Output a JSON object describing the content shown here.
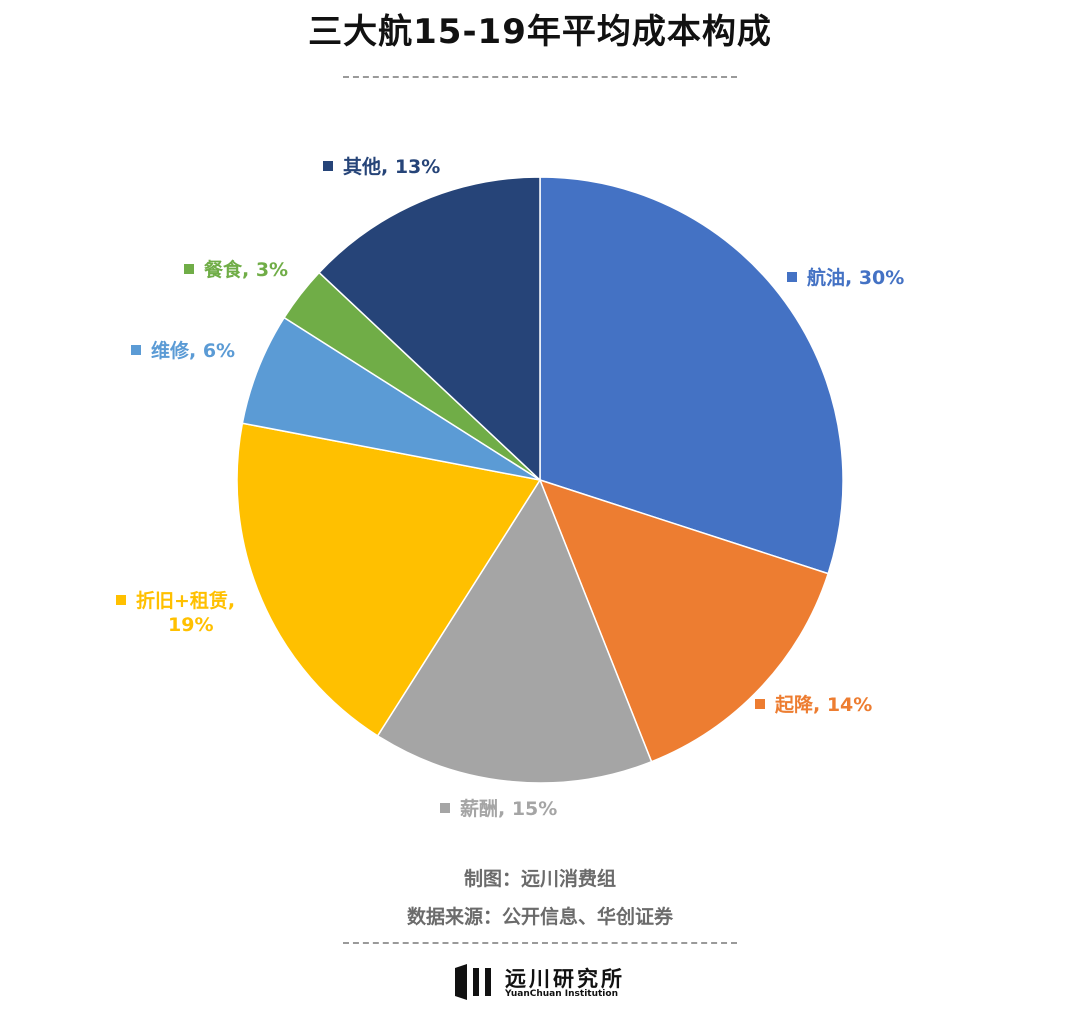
{
  "chart_data": {
    "type": "pie",
    "title": "三大航15-19年平均成本构成",
    "categories": [
      "航油",
      "起降",
      "薪酬",
      "折旧+租赁",
      "维修",
      "餐食",
      "其他"
    ],
    "values": [
      30,
      14,
      15,
      19,
      6,
      3,
      13
    ],
    "unit": "%",
    "colors": [
      "#4472C4",
      "#ED7D31",
      "#A5A5A5",
      "#FFC000",
      "#5B9BD5",
      "#70AD47",
      "#264478"
    ],
    "data_labels": [
      "航油, 30%",
      "起降, 14%",
      "薪酬, 15%",
      "折旧+租赁,\n19%",
      "维修, 6%",
      "餐食, 3%",
      "其他, 13%"
    ],
    "start_angle": "12 o'clock",
    "direction": "clockwise"
  },
  "footer": {
    "credit_line1": "制图：远川消费组",
    "credit_line2": "数据来源：公开信息、华创证券"
  },
  "logo": {
    "name": "远川研究所",
    "subtitle": "YuanChuan  Institution"
  }
}
